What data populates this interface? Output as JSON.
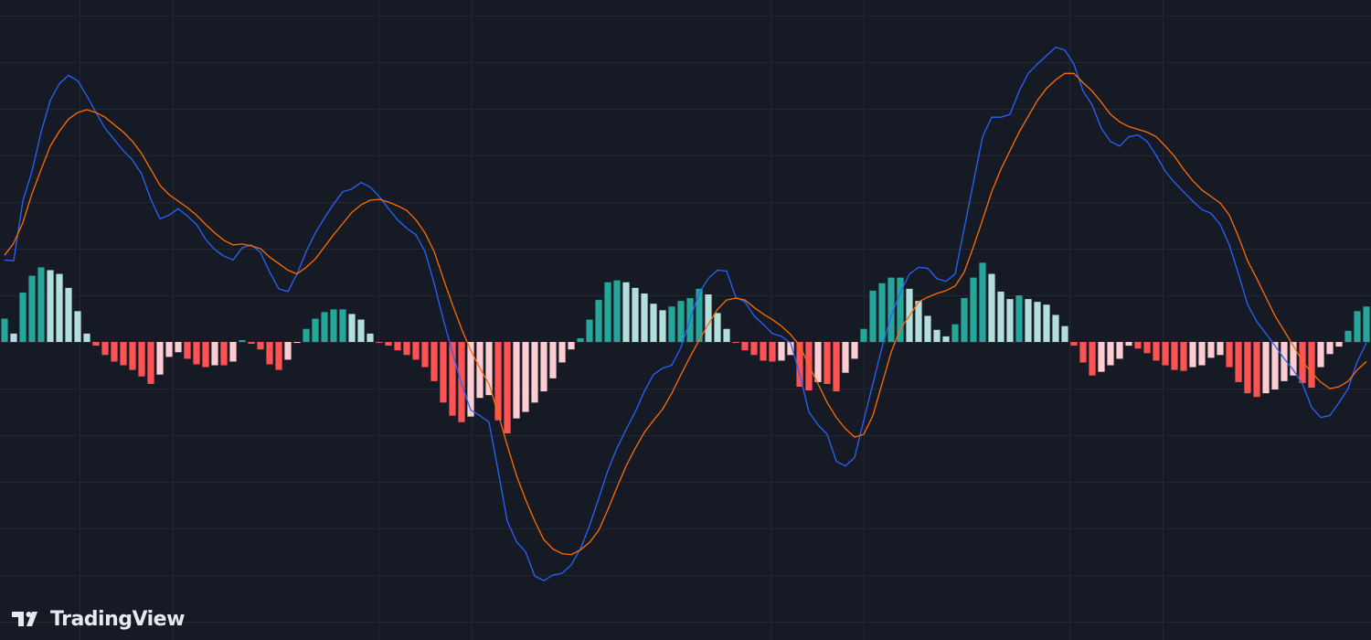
{
  "watermark": "TradingView",
  "chart_data": {
    "type": "macd",
    "xlim": [
      -0.5,
      149.5
    ],
    "ylim": [
      -31.96,
      36.67
    ],
    "ygrid": [
      -30,
      -25,
      -20,
      -15,
      -10,
      -5,
      0,
      5,
      10,
      15,
      20,
      25,
      30,
      35
    ],
    "xgrid": [
      8.2,
      18.4,
      40.9,
      51.1,
      83.8,
      94,
      116.5,
      126.7
    ],
    "grid": true,
    "series": [
      {
        "kind": "bar",
        "colors": [
          "#26a69a",
          "#b2dfdb",
          "#ff5252",
          "#ffcdd2"
        ],
        "values": [
          2.5,
          0.9,
          5.3,
          7.1,
          8.0,
          7.7,
          7.3,
          5.8,
          3.3,
          0.9,
          -0.4,
          -1.4,
          -2.1,
          -2.5,
          -3.0,
          -3.7,
          -4.5,
          -3.5,
          -1.6,
          -1.1,
          -1.8,
          -2.4,
          -2.7,
          -2.5,
          -2.5,
          -2.1,
          0.2,
          -0.2,
          -0.8,
          -2.4,
          -3.0,
          -1.9,
          -0.1,
          1.4,
          2.5,
          3.2,
          3.5,
          3.5,
          3.0,
          2.4,
          0.9,
          -0.1,
          -0.4,
          -0.9,
          -1.4,
          -1.9,
          -2.7,
          -4.2,
          -6.5,
          -7.9,
          -8.6,
          -8.0,
          -6.0,
          -5.7,
          -8.4,
          -9.8,
          -8.2,
          -7.5,
          -6.5,
          -5.3,
          -3.9,
          -2.2,
          -0.8,
          0.4,
          2.4,
          4.5,
          6.4,
          6.6,
          6.4,
          5.8,
          5.2,
          4.1,
          3.4,
          3.8,
          4.4,
          4.7,
          5.7,
          5.1,
          3.1,
          1.4,
          -0.1,
          -0.9,
          -1.4,
          -2.0,
          -2.1,
          -2.0,
          -1.4,
          -4.8,
          -5.2,
          -4.3,
          -4.5,
          -5.3,
          -3.3,
          -1.8,
          1.4,
          5.5,
          6.3,
          6.9,
          6.9,
          5.7,
          4.4,
          2.8,
          1.3,
          0.6,
          1.9,
          4.7,
          6.9,
          8.5,
          7.3,
          5.4,
          4.6,
          5.0,
          4.6,
          4.3,
          4.0,
          2.9,
          1.7,
          -0.4,
          -2.2,
          -3.6,
          -3.2,
          -2.5,
          -1.8,
          -0.4,
          -0.7,
          -1.2,
          -2.0,
          -2.5,
          -3.0,
          -3.1,
          -2.7,
          -2.5,
          -1.7,
          -1.4,
          -2.7,
          -4.3,
          -5.5,
          -5.9,
          -5.5,
          -5.1,
          -4.2,
          -3.6,
          -4.4,
          -4.9,
          -2.7,
          -1.3,
          -0.5,
          1.2,
          3.3,
          3.8
        ]
      },
      {
        "kind": "line",
        "color": "#2962ff",
        "values": [
          8.8,
          8.7,
          15.1,
          18.3,
          22.5,
          25.9,
          27.7,
          28.6,
          28.0,
          26.4,
          24.6,
          22.9,
          21.7,
          20.5,
          19.5,
          18.0,
          15.3,
          13.2,
          13.6,
          14.3,
          13.5,
          12.6,
          11.0,
          9.9,
          9.2,
          8.8,
          10.1,
          10.4,
          9.6,
          7.5,
          5.7,
          5.4,
          7.3,
          9.7,
          11.7,
          13.3,
          14.8,
          16.1,
          16.4,
          17.1,
          16.6,
          15.6,
          14.3,
          13.1,
          12.2,
          11.5,
          9.7,
          6.3,
          2.4,
          -1.1,
          -4.5,
          -7.3,
          -7.9,
          -8.6,
          -13.8,
          -19.2,
          -21.4,
          -22.5,
          -25.1,
          -25.6,
          -25.0,
          -24.8,
          -23.9,
          -22.2,
          -19.7,
          -16.8,
          -13.8,
          -11.4,
          -9.4,
          -7.5,
          -5.3,
          -3.5,
          -2.8,
          -2.5,
          -0.6,
          2.4,
          5.3,
          6.8,
          7.7,
          7.6,
          4.8,
          4.3,
          2.8,
          1.9,
          0.9,
          0.6,
          -0.1,
          -3.5,
          -7.5,
          -8.9,
          -9.9,
          -12.8,
          -13.3,
          -12.4,
          -8.4,
          -4.5,
          -0.6,
          2.8,
          5.3,
          7.3,
          8.0,
          7.9,
          6.8,
          6.5,
          7.3,
          12.2,
          17.1,
          22.0,
          24.1,
          24.1,
          24.4,
          26.9,
          28.8,
          29.8,
          30.7,
          31.6,
          31.3,
          29.8,
          26.9,
          25.4,
          22.9,
          21.5,
          21.0,
          22.0,
          22.2,
          21.5,
          20.0,
          18.3,
          17.1,
          16.1,
          15.1,
          14.2,
          13.8,
          12.6,
          10.4,
          7.3,
          4.0,
          2.2,
          0.9,
          -0.4,
          -1.8,
          -3.0,
          -4.5,
          -7.0,
          -8.1,
          -7.9,
          -6.5,
          -5.0,
          -2.1,
          -0.1
        ]
      },
      {
        "kind": "line",
        "color": "#ff6d00",
        "values": [
          9.3,
          10.6,
          12.8,
          15.9,
          18.5,
          21.0,
          22.6,
          23.9,
          24.6,
          24.9,
          24.6,
          24.1,
          23.3,
          22.5,
          21.5,
          20.2,
          18.5,
          16.8,
          15.8,
          15.1,
          14.4,
          13.6,
          12.6,
          11.7,
          10.9,
          10.4,
          10.5,
          10.3,
          10.0,
          9.1,
          8.4,
          7.7,
          7.3,
          8.0,
          8.9,
          10.2,
          11.5,
          12.7,
          13.9,
          14.7,
          15.2,
          15.3,
          15.0,
          14.6,
          14.1,
          13.1,
          11.7,
          9.7,
          6.8,
          4.0,
          1.4,
          -0.9,
          -2.8,
          -4.5,
          -7.7,
          -11.1,
          -14.3,
          -16.9,
          -19.2,
          -21.2,
          -22.2,
          -22.7,
          -22.8,
          -22.3,
          -21.5,
          -20.2,
          -18.0,
          -15.6,
          -13.3,
          -11.4,
          -9.7,
          -8.4,
          -7.2,
          -5.5,
          -3.5,
          -1.6,
          0.2,
          1.9,
          3.5,
          4.5,
          4.7,
          4.5,
          3.7,
          3.0,
          2.4,
          1.7,
          0.8,
          -0.4,
          -2.5,
          -4.5,
          -6.5,
          -8.1,
          -9.3,
          -10.2,
          -9.9,
          -7.9,
          -4.5,
          -1.1,
          1.4,
          2.8,
          4.3,
          4.8,
          5.2,
          5.5,
          6.0,
          7.5,
          10.2,
          13.1,
          16.1,
          18.5,
          20.5,
          22.5,
          24.2,
          25.9,
          27.2,
          28.1,
          28.8,
          28.8,
          27.8,
          26.9,
          25.7,
          24.4,
          23.6,
          23.1,
          22.8,
          22.5,
          22.0,
          21.0,
          19.9,
          18.5,
          17.3,
          16.3,
          15.6,
          14.9,
          13.6,
          11.3,
          8.7,
          6.8,
          4.8,
          2.8,
          1.2,
          -0.4,
          -2.1,
          -3.3,
          -4.3,
          -5.0,
          -4.8,
          -4.2,
          -3.0,
          -2.1
        ]
      }
    ]
  }
}
